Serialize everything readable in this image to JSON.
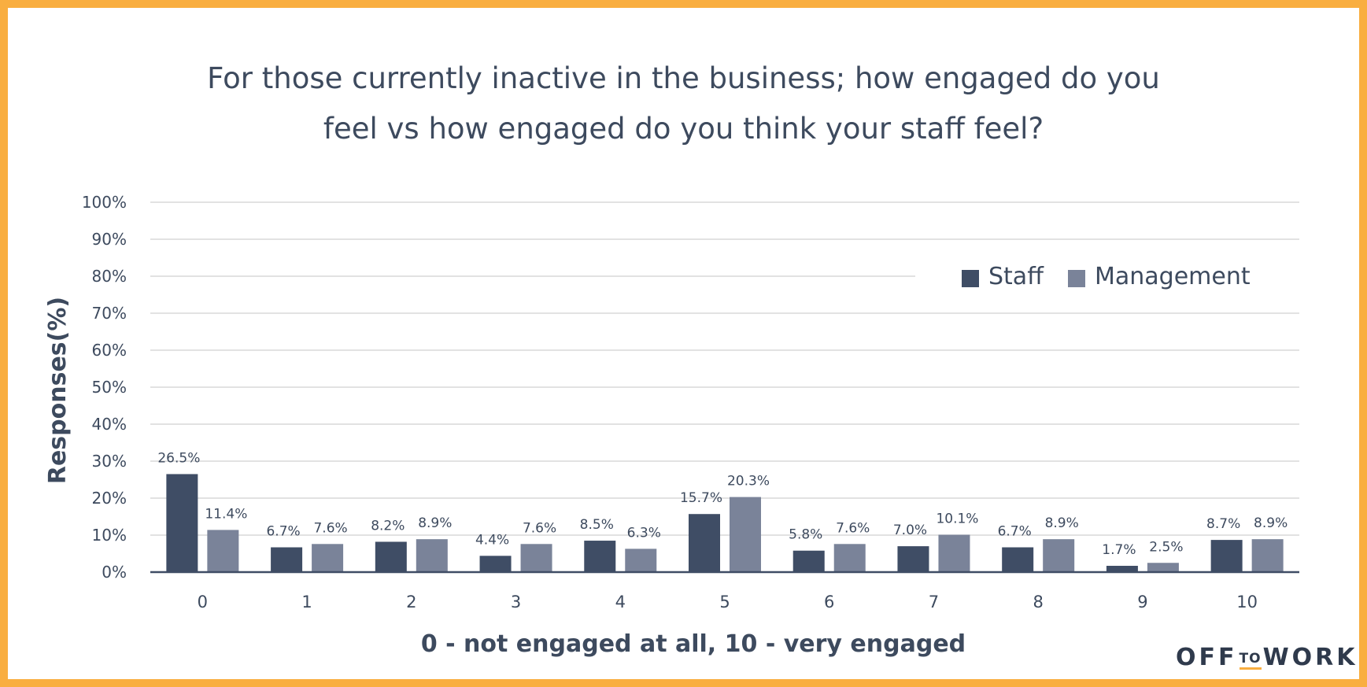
{
  "chart_data": {
    "type": "bar",
    "title": [
      "For those currently inactive in the business; how engaged do you",
      "feel vs how engaged do you think your staff feel?"
    ],
    "xlabel": "0 - not engaged at all, 10 - very engaged",
    "ylabel": "Responses(%)",
    "ylim": [
      0,
      100
    ],
    "yticks": [
      "0%",
      "10%",
      "20%",
      "30%",
      "40%",
      "50%",
      "60%",
      "70%",
      "80%",
      "90%",
      "100%"
    ],
    "categories": [
      "0",
      "1",
      "2",
      "3",
      "4",
      "5",
      "6",
      "7",
      "8",
      "9",
      "10"
    ],
    "grid": true,
    "legend_position": "top-right",
    "series": [
      {
        "name": "Staff",
        "color": "#3F4D65",
        "values": [
          26.5,
          6.7,
          8.2,
          4.4,
          8.5,
          15.7,
          5.8,
          7.0,
          6.7,
          1.7,
          8.7
        ],
        "labels": [
          "26.5%",
          "6.7%",
          "8.2%",
          "4.4%",
          "8.5%",
          "15.7%",
          "5.8%",
          "7.0%",
          "6.7%",
          "1.7%",
          "8.7%"
        ]
      },
      {
        "name": "Management",
        "color": "#7A8399",
        "values": [
          11.4,
          7.6,
          8.9,
          7.6,
          6.3,
          20.3,
          7.6,
          10.1,
          8.9,
          2.5,
          8.9
        ],
        "labels": [
          "11.4%",
          "7.6%",
          "8.9%",
          "7.6%",
          "6.3%",
          "20.3%",
          "7.6%",
          "10.1%",
          "8.9%",
          "2.5%",
          "8.9%"
        ]
      }
    ]
  },
  "logo": {
    "part1": "OFF",
    "part2": "TO",
    "part3": "WORK"
  },
  "colors": {
    "border": "#F9AE40",
    "text": "#3d4a5e"
  }
}
